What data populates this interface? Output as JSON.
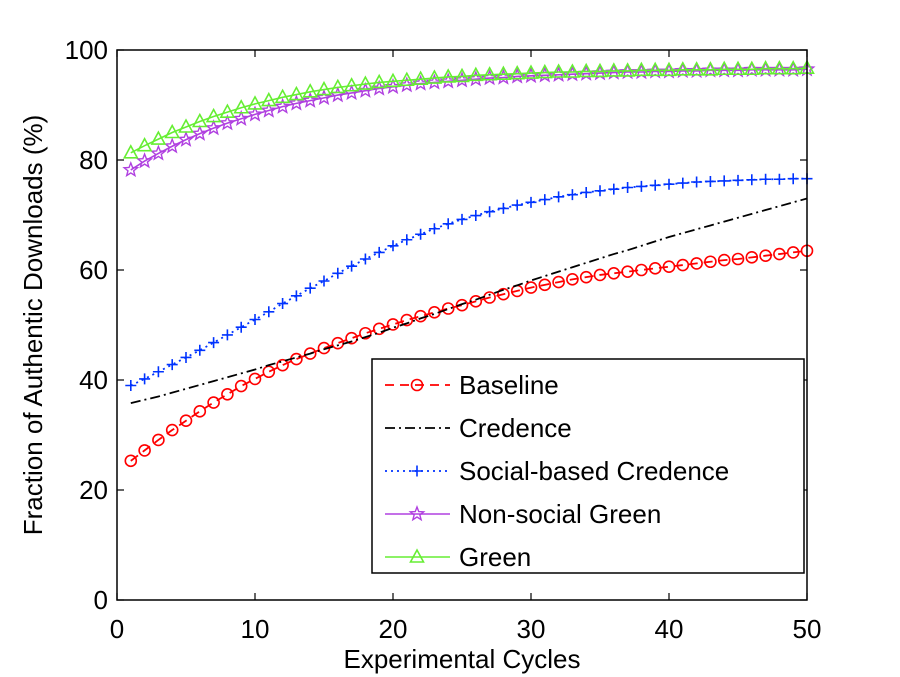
{
  "chart_data": {
    "type": "line",
    "title": "",
    "xlabel": "Experimental Cycles",
    "ylabel": "Fraction of Authentic Downloads (%)",
    "xlim": [
      0,
      50
    ],
    "ylim": [
      0,
      100
    ],
    "xticks": [
      0,
      10,
      20,
      30,
      40,
      50
    ],
    "yticks": [
      0,
      20,
      40,
      60,
      80,
      100
    ],
    "grid": false,
    "legend_position": "bottom-right",
    "x": [
      1,
      2,
      3,
      4,
      5,
      6,
      7,
      8,
      9,
      10,
      11,
      12,
      13,
      14,
      15,
      16,
      17,
      18,
      19,
      20,
      21,
      22,
      23,
      24,
      25,
      26,
      27,
      28,
      29,
      30,
      31,
      32,
      33,
      34,
      35,
      36,
      37,
      38,
      39,
      40,
      41,
      42,
      43,
      44,
      45,
      46,
      47,
      48,
      49,
      50
    ],
    "series": [
      {
        "name": "Baseline",
        "color": "#ff0000",
        "line": "dashed",
        "marker": "circle",
        "values": [
          25.3,
          27.2,
          29.1,
          30.9,
          32.6,
          34.3,
          35.9,
          37.4,
          38.9,
          40.2,
          41.5,
          42.7,
          43.8,
          44.8,
          45.8,
          46.7,
          47.6,
          48.5,
          49.3,
          50.1,
          50.9,
          51.6,
          52.3,
          53.0,
          53.6,
          54.3,
          55.0,
          55.6,
          56.2,
          56.8,
          57.3,
          57.8,
          58.3,
          58.7,
          59.1,
          59.4,
          59.7,
          60.0,
          60.3,
          60.6,
          60.9,
          61.2,
          61.5,
          61.8,
          62.0,
          62.3,
          62.6,
          62.9,
          63.2,
          63.5
        ]
      },
      {
        "name": "Credence",
        "color": "#000000",
        "line": "dashdot",
        "marker": "none",
        "values": [
          35.8,
          36.4,
          37.0,
          37.7,
          38.4,
          39.1,
          39.8,
          40.5,
          41.2,
          41.9,
          42.7,
          43.4,
          44.1,
          44.8,
          45.6,
          46.3,
          47.0,
          47.8,
          48.6,
          49.5,
          50.3,
          51.2,
          52.0,
          52.9,
          53.8,
          54.6,
          55.5,
          56.4,
          57.2,
          58.1,
          58.9,
          59.7,
          60.5,
          61.3,
          62.1,
          62.9,
          63.6,
          64.4,
          65.2,
          66.0,
          66.7,
          67.4,
          68.1,
          68.8,
          69.5,
          70.2,
          70.9,
          71.6,
          72.3,
          73.0
        ]
      },
      {
        "name": "Social-based Credence",
        "color": "#0033ff",
        "line": "dotted",
        "marker": "plus",
        "values": [
          39.0,
          40.2,
          41.5,
          42.8,
          44.1,
          45.4,
          46.8,
          48.2,
          49.6,
          51.0,
          52.4,
          53.9,
          55.3,
          56.7,
          58.0,
          59.4,
          60.7,
          62.0,
          63.2,
          64.4,
          65.5,
          66.5,
          67.5,
          68.4,
          69.2,
          69.9,
          70.6,
          71.2,
          71.8,
          72.3,
          72.8,
          73.3,
          73.7,
          74.1,
          74.4,
          74.7,
          75.0,
          75.2,
          75.4,
          75.6,
          75.8,
          76.0,
          76.1,
          76.2,
          76.3,
          76.4,
          76.5,
          76.5,
          76.6,
          76.6
        ]
      },
      {
        "name": "Non-social Green",
        "color": "#b040e0",
        "line": "solid",
        "marker": "star",
        "values": [
          78.2,
          79.8,
          81.2,
          82.5,
          83.7,
          84.8,
          85.8,
          86.7,
          87.5,
          88.3,
          89.0,
          89.7,
          90.3,
          90.8,
          91.3,
          91.8,
          92.2,
          92.6,
          93.0,
          93.3,
          93.6,
          93.9,
          94.1,
          94.3,
          94.5,
          94.7,
          94.9,
          95.0,
          95.2,
          95.3,
          95.4,
          95.5,
          95.6,
          95.7,
          95.8,
          95.9,
          96.0,
          96.0,
          96.1,
          96.1,
          96.2,
          96.2,
          96.3,
          96.3,
          96.3,
          96.4,
          96.4,
          96.4,
          96.4,
          96.5
        ]
      },
      {
        "name": "Green",
        "color": "#66ee33",
        "line": "solid",
        "marker": "triangle",
        "values": [
          81.3,
          82.6,
          83.8,
          85.0,
          86.0,
          87.0,
          87.9,
          88.7,
          89.5,
          90.2,
          90.8,
          91.4,
          91.9,
          92.4,
          92.8,
          93.2,
          93.5,
          93.8,
          94.1,
          94.3,
          94.5,
          94.7,
          94.9,
          95.1,
          95.2,
          95.4,
          95.5,
          95.6,
          95.7,
          95.8,
          95.9,
          96.0,
          96.0,
          96.1,
          96.1,
          96.2,
          96.2,
          96.3,
          96.3,
          96.3,
          96.4,
          96.4,
          96.4,
          96.5,
          96.5,
          96.5,
          96.6,
          96.6,
          96.6,
          96.7
        ]
      }
    ]
  }
}
